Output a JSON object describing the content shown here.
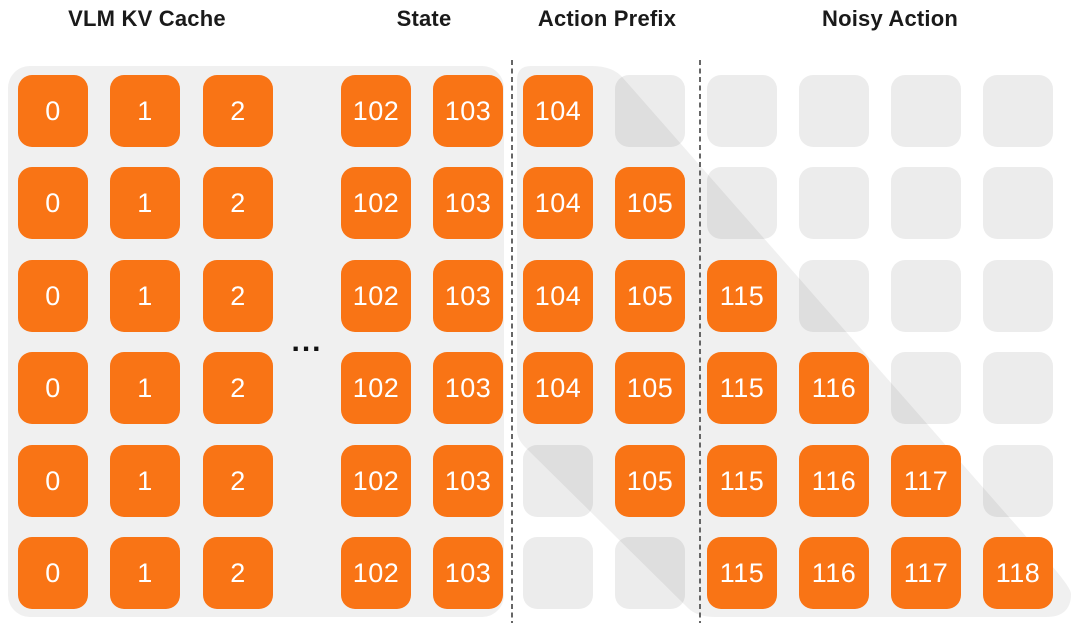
{
  "headers": [
    {
      "id": "vlm-kv-cache",
      "label": "VLM KV Cache"
    },
    {
      "id": "state",
      "label": "State"
    },
    {
      "id": "action-prefix",
      "label": "Action Prefix"
    },
    {
      "id": "noisy-action",
      "label": "Noisy Action"
    }
  ],
  "ellipsis": "...",
  "colors": {
    "cell_filled": "#f97415",
    "cell_empty": "rgba(0,0,0,0.075)",
    "cell_text": "#ffffff",
    "region_bg": "#f0f0f0",
    "divider": "#666666",
    "header_text": "#1a1a1a"
  },
  "grid": {
    "rows": [
      {
        "cells": [
          "0",
          "1",
          "2",
          "102",
          "103",
          "104",
          "",
          "",
          "",
          "",
          ""
        ]
      },
      {
        "cells": [
          "0",
          "1",
          "2",
          "102",
          "103",
          "104",
          "105",
          "",
          "",
          "",
          ""
        ]
      },
      {
        "cells": [
          "0",
          "1",
          "2",
          "102",
          "103",
          "104",
          "105",
          "115",
          "",
          "",
          ""
        ]
      },
      {
        "cells": [
          "0",
          "1",
          "2",
          "102",
          "103",
          "104",
          "105",
          "115",
          "116",
          "",
          ""
        ]
      },
      {
        "cells": [
          "0",
          "1",
          "2",
          "102",
          "103",
          "",
          "105",
          "115",
          "116",
          "117",
          ""
        ]
      },
      {
        "cells": [
          "0",
          "1",
          "2",
          "102",
          "103",
          "",
          "",
          "115",
          "116",
          "117",
          "118"
        ]
      }
    ]
  }
}
